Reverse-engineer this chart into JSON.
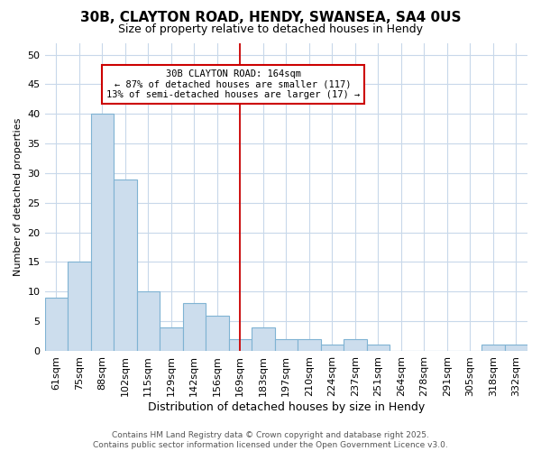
{
  "title1": "30B, CLAYTON ROAD, HENDY, SWANSEA, SA4 0US",
  "title2": "Size of property relative to detached houses in Hendy",
  "xlabel": "Distribution of detached houses by size in Hendy",
  "ylabel": "Number of detached properties",
  "bar_labels": [
    "61sqm",
    "75sqm",
    "88sqm",
    "102sqm",
    "115sqm",
    "129sqm",
    "142sqm",
    "156sqm",
    "169sqm",
    "183sqm",
    "197sqm",
    "210sqm",
    "224sqm",
    "237sqm",
    "251sqm",
    "264sqm",
    "278sqm",
    "291sqm",
    "305sqm",
    "318sqm",
    "332sqm"
  ],
  "bar_values": [
    9,
    15,
    40,
    29,
    10,
    4,
    8,
    6,
    2,
    4,
    2,
    2,
    1,
    2,
    1,
    0,
    0,
    0,
    0,
    1,
    1
  ],
  "bar_color": "#ccdded",
  "bar_edge_color": "#7fb3d3",
  "vline_index": 8,
  "vline_color": "#cc0000",
  "annotation_text": "30B CLAYTON ROAD: 164sqm\n← 87% of detached houses are smaller (117)\n13% of semi-detached houses are larger (17) →",
  "annotation_box_facecolor": "#ffffff",
  "annotation_box_edgecolor": "#cc0000",
  "ylim": [
    0,
    52
  ],
  "yticks": [
    0,
    5,
    10,
    15,
    20,
    25,
    30,
    35,
    40,
    45,
    50
  ],
  "footer": "Contains HM Land Registry data © Crown copyright and database right 2025.\nContains public sector information licensed under the Open Government Licence v3.0.",
  "bg_color": "#ffffff",
  "plot_bg_color": "#ffffff",
  "grid_color": "#c8d8ea",
  "title1_fontsize": 11,
  "title2_fontsize": 9,
  "xlabel_fontsize": 9,
  "ylabel_fontsize": 8,
  "tick_fontsize": 8,
  "annot_fontsize": 7.5,
  "footer_fontsize": 6.5,
  "footer_color": "#555555"
}
